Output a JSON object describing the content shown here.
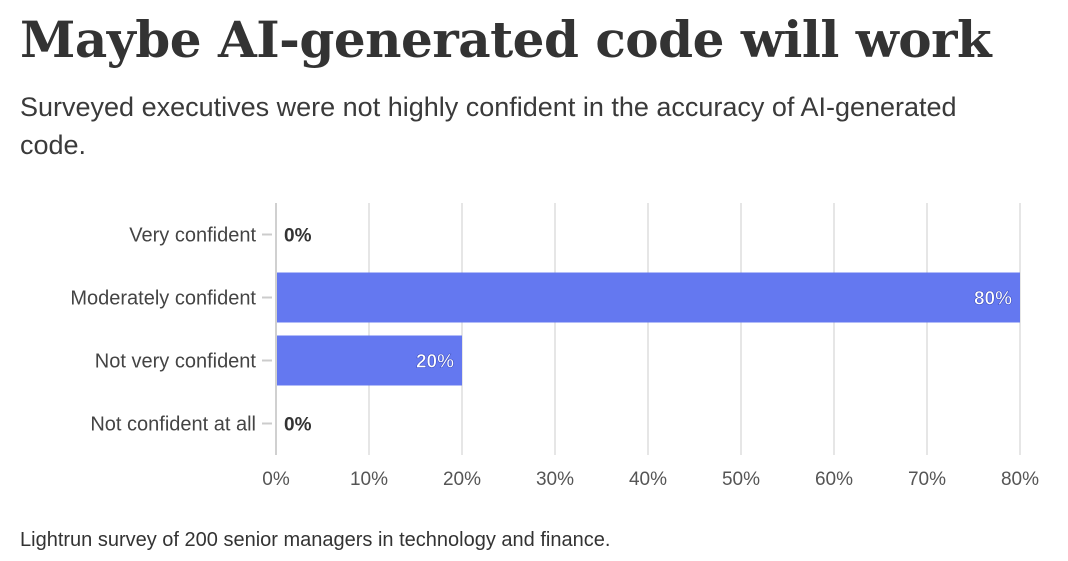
{
  "title": "Maybe AI-generated code will work",
  "subtitle": "Surveyed executives were not highly confident in the accuracy of AI-generated code.",
  "note": "Lightrun survey of 200 senior managers in technology and finance.",
  "chart_data": {
    "type": "bar",
    "orientation": "horizontal",
    "categories": [
      "Very confident",
      "Moderately confident",
      "Not very confident",
      "Not confident at all"
    ],
    "values": [
      0,
      80,
      20,
      0
    ],
    "value_labels": [
      "0%",
      "80%",
      "20%",
      "0%"
    ],
    "x_ticks": [
      "0%",
      "10%",
      "20%",
      "30%",
      "40%",
      "50%",
      "60%",
      "70%",
      "80%"
    ],
    "xlim": [
      0,
      80
    ],
    "grid": true,
    "bar_color": "#6478f0",
    "title": "Maybe AI-generated code will work",
    "xlabel": "",
    "ylabel": ""
  }
}
